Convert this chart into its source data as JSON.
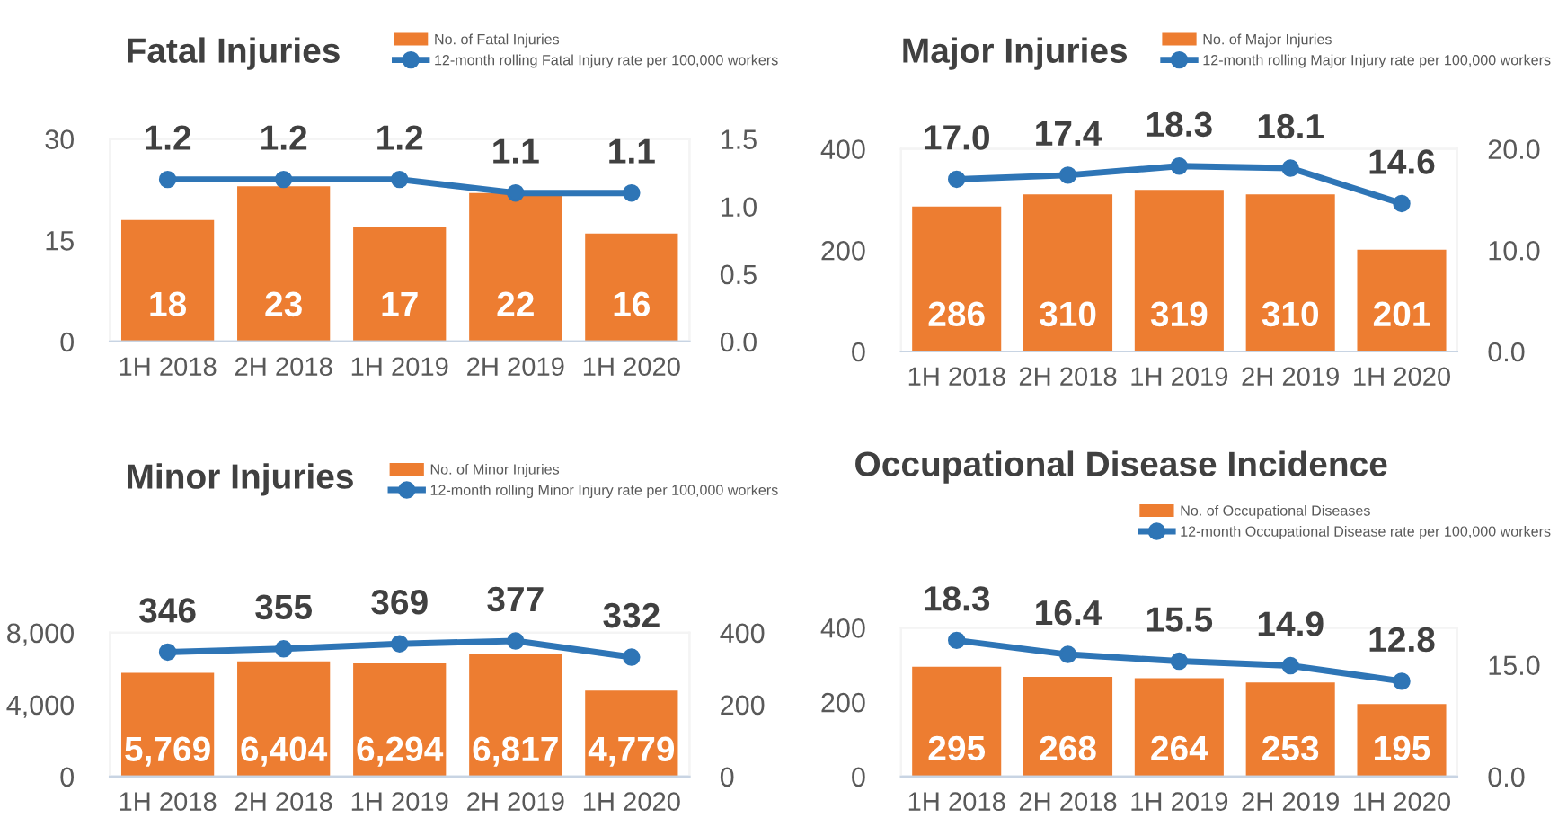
{
  "chart_data": [
    {
      "type": "bar",
      "title": "Fatal Injuries",
      "categories": [
        "1H 2018",
        "2H 2018",
        "1H 2019",
        "2H 2019",
        "1H 2020"
      ],
      "legend": "top right",
      "grid": false,
      "ylim": [
        0,
        30
      ],
      "yticks": [
        0,
        15,
        30
      ],
      "y2lim": [
        0,
        1.5
      ],
      "y2ticks": [
        {
          "value": 0,
          "label": "0.0"
        },
        {
          "value": 0.5,
          "label": "0.5"
        },
        {
          "value": 1,
          "label": "1.0"
        },
        {
          "value": 1.5,
          "label": "1.5"
        }
      ],
      "series": [
        {
          "name": "No. of Fatal Injuries",
          "color": "#ed7d31",
          "values": [
            18,
            23,
            17,
            22,
            16
          ],
          "value_labels": [
            "18",
            "23",
            "17",
            "22",
            "16"
          ]
        },
        {
          "type": "line",
          "axis": "y2",
          "marker": "circle",
          "name": "12-month rolling Fatal Injury rate per 100,000 workers",
          "color": "#2e75b6",
          "values": [
            1.2,
            1.2,
            1.2,
            1.1,
            1.1
          ],
          "value_labels": [
            "1.2",
            "1.2",
            "1.2",
            "1.1",
            "1.1"
          ]
        }
      ]
    },
    {
      "type": "bar",
      "title": "Major Injuries",
      "categories": [
        "1H 2018",
        "2H 2018",
        "1H 2019",
        "2H 2019",
        "1H 2020"
      ],
      "legend": "top right",
      "grid": false,
      "ylim": [
        0,
        400
      ],
      "yticks": [
        0,
        200,
        400
      ],
      "y2lim": [
        0,
        20
      ],
      "y2ticks": [
        {
          "value": 0,
          "label": "0.0"
        },
        {
          "value": 10,
          "label": "10.0"
        },
        {
          "value": 20,
          "label": "20.0"
        }
      ],
      "series": [
        {
          "name": "No. of Major Injuries",
          "color": "#ed7d31",
          "values": [
            286,
            310,
            319,
            310,
            201
          ],
          "value_labels": [
            "286",
            "310",
            "319",
            "310",
            "201"
          ]
        },
        {
          "type": "line",
          "axis": "y2",
          "marker": "circle",
          "name": "12-month rolling Major Injury rate per 100,000 workers",
          "color": "#2e75b6",
          "values": [
            17.0,
            17.4,
            18.3,
            18.1,
            14.6
          ],
          "value_labels": [
            "17.0",
            "17.4",
            "18.3",
            "18.1",
            "14.6"
          ]
        }
      ]
    },
    {
      "type": "bar",
      "title": "Minor Injuries",
      "categories": [
        "1H 2018",
        "2H 2018",
        "1H 2019",
        "2H 2019",
        "1H 2020"
      ],
      "legend": "top right",
      "grid": false,
      "ylim": [
        0,
        8000
      ],
      "yticks": [
        {
          "value": 0,
          "label": "0"
        },
        {
          "value": 4000,
          "label": "4,000"
        },
        {
          "value": 8000,
          "label": "8,000"
        }
      ],
      "y2lim": [
        0,
        400
      ],
      "y2ticks": [
        0,
        200,
        400
      ],
      "series": [
        {
          "name": "No. of Minor Injuries",
          "color": "#ed7d31",
          "values": [
            5769,
            6404,
            6294,
            6817,
            4779
          ],
          "value_labels": [
            "5,769",
            "6,404",
            "6,294",
            "6,817",
            "4,779"
          ]
        },
        {
          "type": "line",
          "axis": "y2",
          "marker": "circle",
          "name": "12-month rolling Minor Injury rate per 100,000 workers",
          "color": "#2e75b6",
          "values": [
            346,
            355,
            369,
            377,
            332
          ],
          "value_labels": [
            "346",
            "355",
            "369",
            "377",
            "332"
          ]
        }
      ]
    },
    {
      "type": "bar",
      "title": "Occupational Disease Incidence",
      "categories": [
        "1H 2018",
        "2H 2018",
        "1H 2019",
        "2H 2019",
        "1H 2020"
      ],
      "legend": "top right",
      "grid": false,
      "ylim": [
        0,
        400
      ],
      "yticks": [
        0,
        200,
        400
      ],
      "y2lim": [
        0,
        20
      ],
      "y2ticks": [
        {
          "value": 0,
          "label": "0.0"
        },
        {
          "value": 15,
          "label": "15.0"
        }
      ],
      "series": [
        {
          "name": "No. of Occupational Diseases",
          "color": "#ed7d31",
          "values": [
            295,
            268,
            264,
            253,
            195
          ],
          "value_labels": [
            "295",
            "268",
            "264",
            "253",
            "195"
          ]
        },
        {
          "type": "line",
          "axis": "y2",
          "marker": "circle",
          "name": "12-month Occupational Disease rate per 100,000 workers",
          "color": "#2e75b6",
          "values": [
            18.3,
            16.4,
            15.5,
            14.9,
            12.8
          ],
          "value_labels": [
            "18.3",
            "16.4",
            "15.5",
            "14.9",
            "12.8"
          ]
        }
      ]
    }
  ]
}
